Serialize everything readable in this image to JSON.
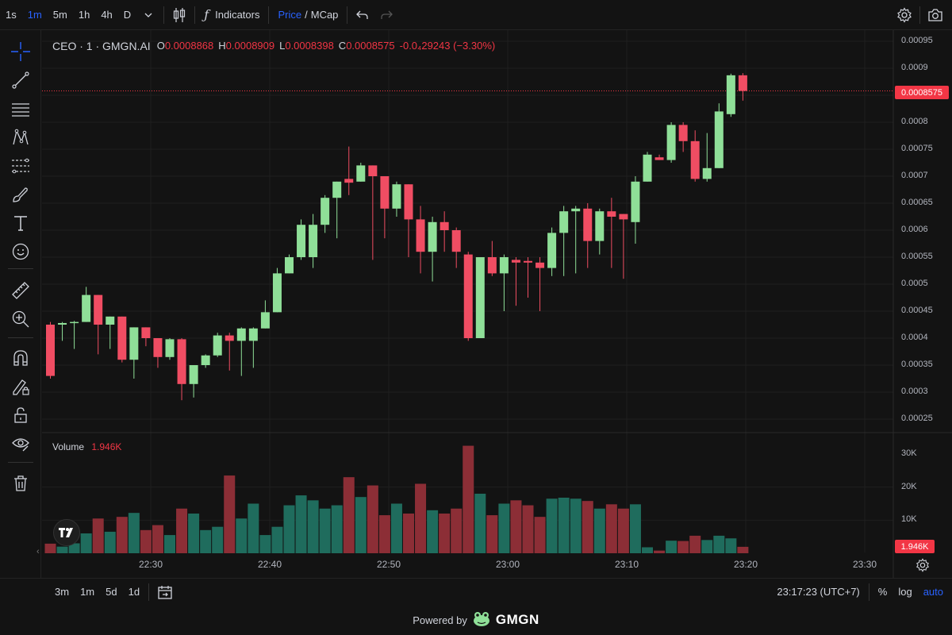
{
  "topbar": {
    "intervals": [
      "1s",
      "1m",
      "5m",
      "1h",
      "4h",
      "D"
    ],
    "active_interval": "1m",
    "indicators_label": "Indicators",
    "price_label": "Price",
    "slash": "/",
    "mcap_label": "MCap"
  },
  "legend": {
    "symbol": "CEO · 1 · GMGN.AI",
    "open_key": "O",
    "open_val": "0.0008868",
    "high_key": "H",
    "high_val": "0.0008909",
    "low_key": "L",
    "low_val": "0.0008398",
    "close_key": "C",
    "close_val": "0.0008575",
    "change": "-0.0₄29243 (−3.30%)"
  },
  "volume_legend": {
    "label": "Volume",
    "value": "1.946K"
  },
  "price_axis": [
    "0.00095",
    "0.0009",
    "0.0008575",
    "0.0008",
    "0.00075",
    "0.0007",
    "0.00065",
    "0.0006",
    "0.00055",
    "0.0005",
    "0.00045",
    "0.0004",
    "0.00035",
    "0.0003",
    "0.00025"
  ],
  "volume_axis": [
    "30K",
    "20K",
    "10K"
  ],
  "last_price_tag": "0.0008575",
  "volume_tag": "1.946K",
  "time_axis": [
    "22:30",
    "22:40",
    "22:50",
    "23:00",
    "23:10",
    "23:20",
    "23:30"
  ],
  "bottombar": {
    "ranges": [
      "3m",
      "1m",
      "5d",
      "1d"
    ],
    "clock": "23:17:23 (UTC+7)",
    "percent": "%",
    "log": "log",
    "auto": "auto"
  },
  "powered": {
    "text": "Powered by",
    "brand": "GMGN"
  },
  "colors": {
    "up": "#8fdf98",
    "down": "#f04d63",
    "vol_up": "#1f6c5d",
    "vol_down": "#8c2e36",
    "accent": "#2962ff"
  },
  "chart_data": {
    "type": "candlestick",
    "price_range": [
      0.00022,
      0.00098
    ],
    "volume_range": [
      0,
      33000
    ],
    "candles": [
      {
        "t": "22:22",
        "o": 0.000425,
        "h": 0.00043,
        "l": 0.000325,
        "c": 0.00033,
        "v": 2900
      },
      {
        "t": "22:23",
        "o": 0.000425,
        "h": 0.00043,
        "l": 0.000395,
        "c": 0.000428,
        "v": 2000
      },
      {
        "t": "22:24",
        "o": 0.00043,
        "h": 0.000432,
        "l": 0.00038,
        "c": 0.00043,
        "v": 3000
      },
      {
        "t": "22:25",
        "o": 0.00043,
        "h": 0.000495,
        "l": 0.00043,
        "c": 0.00048,
        "v": 6000
      },
      {
        "t": "22:26",
        "o": 0.00048,
        "h": 0.00048,
        "l": 0.00037,
        "c": 0.000425,
        "v": 10500
      },
      {
        "t": "22:27",
        "o": 0.000425,
        "h": 0.00044,
        "l": 0.00038,
        "c": 0.00044,
        "v": 6500
      },
      {
        "t": "22:28",
        "o": 0.00044,
        "h": 0.00044,
        "l": 0.000355,
        "c": 0.00036,
        "v": 11000
      },
      {
        "t": "22:29",
        "o": 0.00036,
        "h": 0.00042,
        "l": 0.000325,
        "c": 0.00042,
        "v": 12200
      },
      {
        "t": "22:30",
        "o": 0.00042,
        "h": 0.00042,
        "l": 0.000385,
        "c": 0.0004,
        "v": 7000
      },
      {
        "t": "22:31",
        "o": 0.0004,
        "h": 0.0004,
        "l": 0.000345,
        "c": 0.000365,
        "v": 8500
      },
      {
        "t": "22:32",
        "o": 0.000365,
        "h": 0.0004,
        "l": 0.00036,
        "c": 0.000398,
        "v": 5500
      },
      {
        "t": "22:33",
        "o": 0.000398,
        "h": 0.0004,
        "l": 0.000285,
        "c": 0.000315,
        "v": 13500
      },
      {
        "t": "22:34",
        "o": 0.000315,
        "h": 0.00035,
        "l": 0.00029,
        "c": 0.00035,
        "v": 12000
      },
      {
        "t": "22:35",
        "o": 0.00035,
        "h": 0.00037,
        "l": 0.000345,
        "c": 0.000368,
        "v": 7000
      },
      {
        "t": "22:36",
        "o": 0.000368,
        "h": 0.00041,
        "l": 0.000365,
        "c": 0.000405,
        "v": 8000
      },
      {
        "t": "22:37",
        "o": 0.000405,
        "h": 0.00041,
        "l": 0.00034,
        "c": 0.000395,
        "v": 23500
      },
      {
        "t": "22:38",
        "o": 0.000395,
        "h": 0.00042,
        "l": 0.00033,
        "c": 0.000418,
        "v": 10500
      },
      {
        "t": "22:39",
        "o": 0.000395,
        "h": 0.00042,
        "l": 0.000345,
        "c": 0.000418,
        "v": 15000
      },
      {
        "t": "22:40",
        "o": 0.000418,
        "h": 0.00047,
        "l": 0.000418,
        "c": 0.000448,
        "v": 5500
      },
      {
        "t": "22:41",
        "o": 0.000448,
        "h": 0.00053,
        "l": 0.000448,
        "c": 0.00052,
        "v": 8000
      },
      {
        "t": "22:42",
        "o": 0.00052,
        "h": 0.000555,
        "l": 0.00052,
        "c": 0.00055,
        "v": 14500
      },
      {
        "t": "22:43",
        "o": 0.00055,
        "h": 0.00062,
        "l": 0.000545,
        "c": 0.00061,
        "v": 17500
      },
      {
        "t": "22:44",
        "o": 0.00055,
        "h": 0.00063,
        "l": 0.00053,
        "c": 0.00061,
        "v": 16000
      },
      {
        "t": "22:45",
        "o": 0.00061,
        "h": 0.000665,
        "l": 0.000595,
        "c": 0.00066,
        "v": 13500
      },
      {
        "t": "22:46",
        "o": 0.00066,
        "h": 0.00069,
        "l": 0.000585,
        "c": 0.00069,
        "v": 14500
      },
      {
        "t": "22:47",
        "o": 0.000695,
        "h": 0.000755,
        "l": 0.000665,
        "c": 0.000688,
        "v": 23000
      },
      {
        "t": "22:48",
        "o": 0.00069,
        "h": 0.000725,
        "l": 0.00069,
        "c": 0.00072,
        "v": 17000
      },
      {
        "t": "22:49",
        "o": 0.00072,
        "h": 0.00072,
        "l": 0.000545,
        "c": 0.0007,
        "v": 20500
      },
      {
        "t": "22:50",
        "o": 0.0007,
        "h": 0.0007,
        "l": 0.000585,
        "c": 0.00064,
        "v": 11500
      },
      {
        "t": "22:51",
        "o": 0.00064,
        "h": 0.00069,
        "l": 0.000625,
        "c": 0.000685,
        "v": 15000
      },
      {
        "t": "22:52",
        "o": 0.000685,
        "h": 0.000685,
        "l": 0.00055,
        "c": 0.00062,
        "v": 12000
      },
      {
        "t": "22:53",
        "o": 0.00062,
        "h": 0.000645,
        "l": 0.00052,
        "c": 0.00056,
        "v": 21000
      },
      {
        "t": "22:54",
        "o": 0.00056,
        "h": 0.000625,
        "l": 0.000505,
        "c": 0.000615,
        "v": 13000
      },
      {
        "t": "22:55",
        "o": 0.000615,
        "h": 0.000635,
        "l": 0.00056,
        "c": 0.0006,
        "v": 12000
      },
      {
        "t": "22:56",
        "o": 0.0006,
        "h": 0.000605,
        "l": 0.00053,
        "c": 0.00056,
        "v": 13500
      },
      {
        "t": "22:57",
        "o": 0.000555,
        "h": 0.00056,
        "l": 0.000395,
        "c": 0.0004,
        "v": 32500
      },
      {
        "t": "22:58",
        "o": 0.0004,
        "h": 0.00055,
        "l": 0.0004,
        "c": 0.00055,
        "v": 18000
      },
      {
        "t": "22:59",
        "o": 0.00055,
        "h": 0.00058,
        "l": 0.000515,
        "c": 0.00052,
        "v": 11500
      },
      {
        "t": "23:00",
        "o": 0.00052,
        "h": 0.000555,
        "l": 0.00045,
        "c": 0.00055,
        "v": 15000
      },
      {
        "t": "23:01",
        "o": 0.000545,
        "h": 0.00055,
        "l": 0.00046,
        "c": 0.00054,
        "v": 16000
      },
      {
        "t": "23:02",
        "o": 0.000543,
        "h": 0.00055,
        "l": 0.000475,
        "c": 0.00054,
        "v": 14500
      },
      {
        "t": "23:03",
        "o": 0.00054,
        "h": 0.00055,
        "l": 0.00045,
        "c": 0.00053,
        "v": 11000
      },
      {
        "t": "23:04",
        "o": 0.00053,
        "h": 0.000605,
        "l": 0.000515,
        "c": 0.000595,
        "v": 16500
      },
      {
        "t": "23:05",
        "o": 0.000595,
        "h": 0.000645,
        "l": 0.000515,
        "c": 0.000635,
        "v": 16800
      },
      {
        "t": "23:06",
        "o": 0.000635,
        "h": 0.000645,
        "l": 0.00052,
        "c": 0.00064,
        "v": 16500
      },
      {
        "t": "23:07",
        "o": 0.00064,
        "h": 0.00065,
        "l": 0.00053,
        "c": 0.00058,
        "v": 15800
      },
      {
        "t": "23:08",
        "o": 0.00058,
        "h": 0.00064,
        "l": 0.000555,
        "c": 0.000635,
        "v": 13500
      },
      {
        "t": "23:09",
        "o": 0.000635,
        "h": 0.00066,
        "l": 0.00053,
        "c": 0.000625,
        "v": 14800
      },
      {
        "t": "23:10",
        "o": 0.00063,
        "h": 0.00063,
        "l": 0.00051,
        "c": 0.00062,
        "v": 13500
      },
      {
        "t": "23:11",
        "o": 0.000615,
        "h": 0.0007,
        "l": 0.000575,
        "c": 0.00069,
        "v": 14800
      },
      {
        "t": "23:12",
        "o": 0.00069,
        "h": 0.000745,
        "l": 0.00069,
        "c": 0.00074,
        "v": 1800
      },
      {
        "t": "23:13",
        "o": 0.000735,
        "h": 0.00074,
        "l": 0.00073,
        "c": 0.00073,
        "v": 800
      },
      {
        "t": "23:14",
        "o": 0.00073,
        "h": 0.0008,
        "l": 0.000725,
        "c": 0.000795,
        "v": 3800
      },
      {
        "t": "23:15",
        "o": 0.000795,
        "h": 0.0008,
        "l": 0.000745,
        "c": 0.000765,
        "v": 3700
      },
      {
        "t": "23:16",
        "o": 0.000765,
        "h": 0.000785,
        "l": 0.00069,
        "c": 0.000695,
        "v": 5300
      },
      {
        "t": "23:17",
        "o": 0.000695,
        "h": 0.00078,
        "l": 0.00069,
        "c": 0.000715,
        "v": 4000
      },
      {
        "t": "23:18",
        "o": 0.000715,
        "h": 0.000835,
        "l": 0.000715,
        "c": 0.00082,
        "v": 5300
      },
      {
        "t": "23:19",
        "o": 0.000815,
        "h": 0.00089,
        "l": 0.00081,
        "c": 0.000887,
        "v": 4500
      },
      {
        "t": "23:20",
        "o": 0.000887,
        "h": 0.000891,
        "l": 0.00084,
        "c": 0.000858,
        "v": 1946
      }
    ]
  }
}
